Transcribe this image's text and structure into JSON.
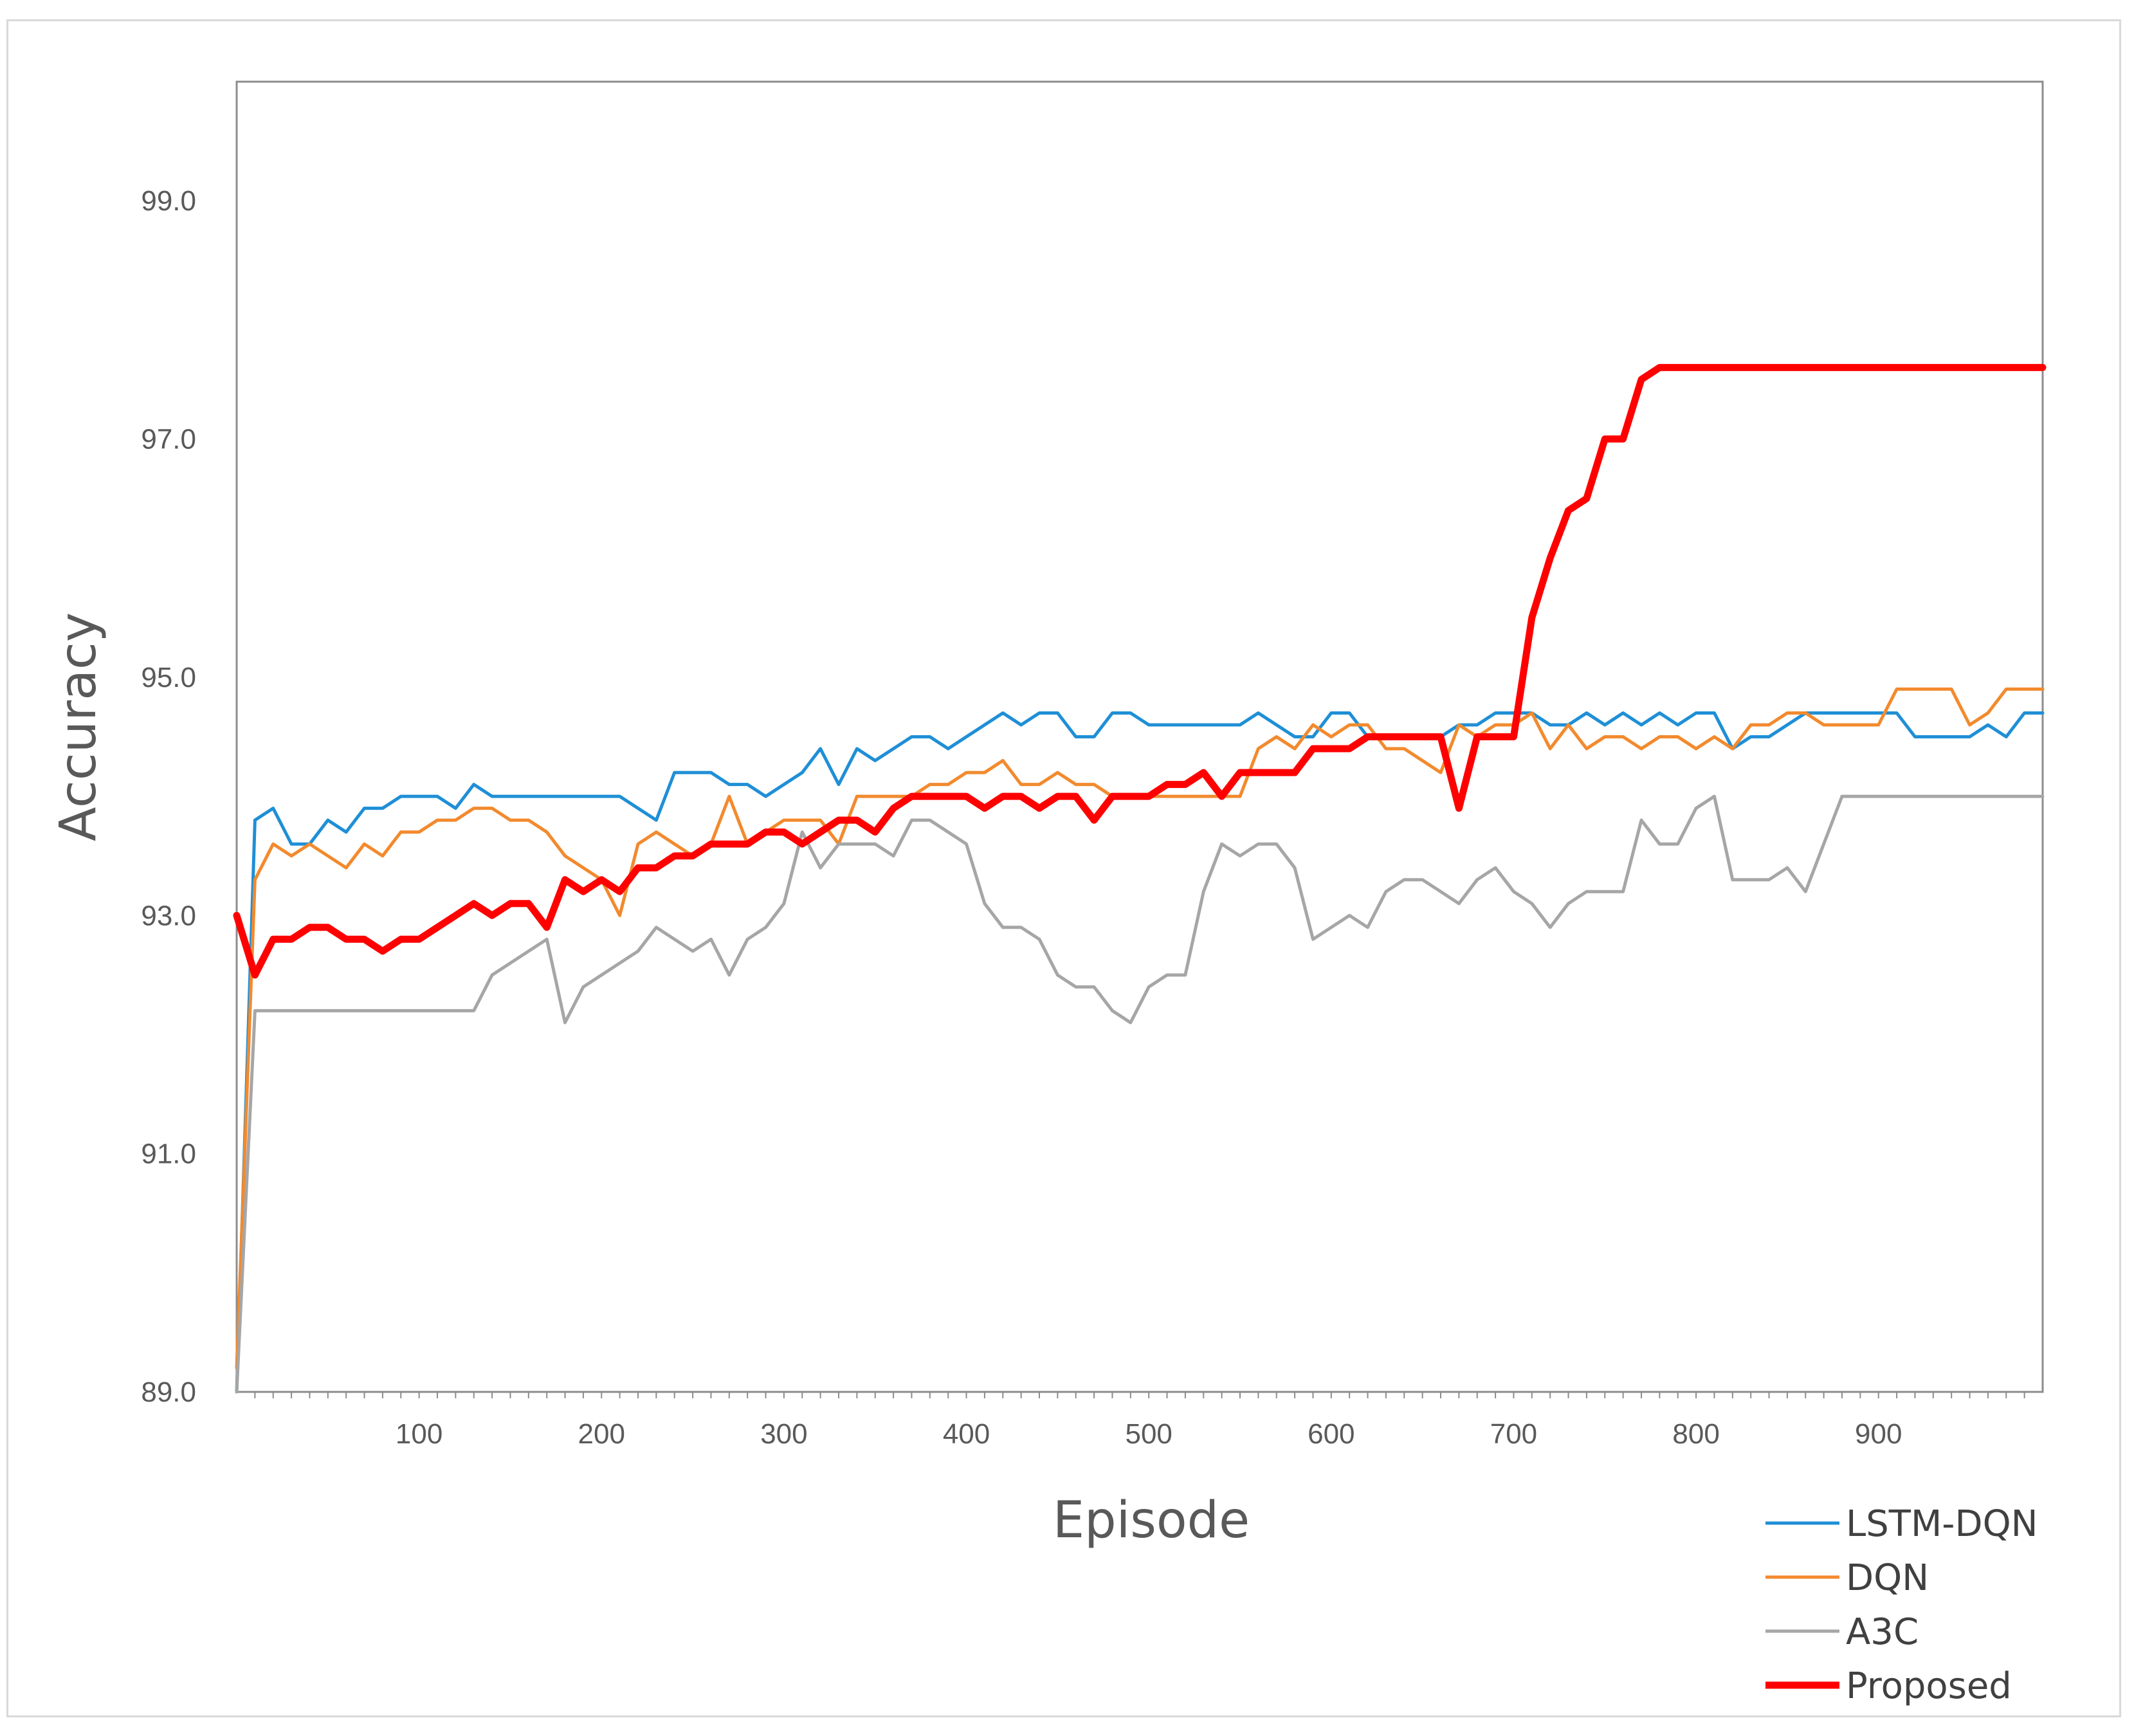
{
  "chart_data": {
    "type": "line",
    "title": "",
    "xlabel": "Episode",
    "ylabel": "Accuracy",
    "xlim": [
      0,
      990
    ],
    "ylim": [
      89.0,
      100.0
    ],
    "x_ticks": [
      100,
      200,
      300,
      400,
      500,
      600,
      700,
      800,
      900
    ],
    "x_tick_labels": [
      "100",
      "200",
      "300",
      "400",
      "500",
      "600",
      "700",
      "800",
      "900"
    ],
    "y_ticks": [
      89.0,
      91.0,
      93.0,
      95.0,
      97.0,
      99.0
    ],
    "y_tick_labels": [
      "89.0",
      "91.0",
      "93.0",
      "95.0",
      "97.0",
      "99.0"
    ],
    "grid": false,
    "legend_position": "bottom-right",
    "series": [
      {
        "name": "LSTM-DQN",
        "color": "#1f8fd6",
        "x": [
          0,
          10,
          20,
          30,
          40,
          50,
          60,
          70,
          80,
          90,
          100,
          110,
          120,
          130,
          140,
          150,
          160,
          170,
          180,
          190,
          200,
          210,
          220,
          230,
          240,
          250,
          260,
          270,
          280,
          290,
          300,
          310,
          320,
          330,
          340,
          350,
          360,
          370,
          380,
          390,
          400,
          410,
          420,
          430,
          440,
          450,
          460,
          470,
          480,
          490,
          500,
          510,
          520,
          530,
          540,
          550,
          560,
          570,
          580,
          590,
          600,
          610,
          620,
          630,
          640,
          650,
          660,
          670,
          680,
          690,
          700,
          710,
          720,
          730,
          740,
          750,
          760,
          770,
          780,
          790,
          800,
          810,
          820,
          830,
          840,
          850,
          860,
          870,
          880,
          890,
          900,
          910,
          920,
          930,
          940,
          950,
          960,
          970,
          980,
          990
        ],
        "values": [
          89.0,
          93.8,
          93.9,
          93.6,
          93.6,
          93.8,
          93.7,
          93.9,
          93.9,
          94.0,
          94.0,
          94.0,
          93.9,
          94.1,
          94.0,
          94.0,
          94.0,
          94.0,
          94.0,
          94.0,
          94.0,
          94.0,
          93.9,
          93.8,
          94.2,
          94.2,
          94.2,
          94.1,
          94.1,
          94.0,
          94.1,
          94.2,
          94.4,
          94.1,
          94.4,
          94.3,
          94.4,
          94.5,
          94.5,
          94.4,
          94.5,
          94.6,
          94.7,
          94.6,
          94.7,
          94.7,
          94.5,
          94.5,
          94.7,
          94.7,
          94.6,
          94.6,
          94.6,
          94.6,
          94.6,
          94.6,
          94.7,
          94.6,
          94.5,
          94.5,
          94.7,
          94.7,
          94.5,
          94.5,
          94.5,
          94.5,
          94.5,
          94.6,
          94.6,
          94.7,
          94.7,
          94.7,
          94.6,
          94.6,
          94.7,
          94.6,
          94.7,
          94.6,
          94.7,
          94.6,
          94.7,
          94.7,
          94.4,
          94.5,
          94.5,
          94.6,
          94.7,
          94.7,
          94.7,
          94.7,
          94.7,
          94.7,
          94.5,
          94.5,
          94.5,
          94.5,
          94.6,
          94.5,
          94.7,
          94.7
        ]
      },
      {
        "name": "DQN",
        "color": "#f28a2e",
        "x": [
          0,
          10,
          20,
          30,
          40,
          50,
          60,
          70,
          80,
          90,
          100,
          110,
          120,
          130,
          140,
          150,
          160,
          170,
          180,
          190,
          200,
          210,
          220,
          230,
          240,
          250,
          260,
          270,
          280,
          290,
          300,
          310,
          320,
          330,
          340,
          350,
          360,
          370,
          380,
          390,
          400,
          410,
          420,
          430,
          440,
          450,
          460,
          470,
          480,
          490,
          500,
          510,
          520,
          530,
          540,
          550,
          560,
          570,
          580,
          590,
          600,
          610,
          620,
          630,
          640,
          650,
          660,
          670,
          680,
          690,
          700,
          710,
          720,
          730,
          740,
          750,
          760,
          770,
          780,
          790,
          800,
          810,
          820,
          830,
          840,
          850,
          860,
          870,
          880,
          890,
          900,
          910,
          920,
          930,
          940,
          950,
          960,
          970,
          980,
          990
        ],
        "values": [
          89.2,
          93.3,
          93.6,
          93.5,
          93.6,
          93.5,
          93.4,
          93.6,
          93.5,
          93.7,
          93.7,
          93.8,
          93.8,
          93.9,
          93.9,
          93.8,
          93.8,
          93.7,
          93.5,
          93.4,
          93.3,
          93.0,
          93.6,
          93.7,
          93.6,
          93.5,
          93.6,
          94.0,
          93.6,
          93.7,
          93.8,
          93.8,
          93.8,
          93.6,
          94.0,
          94.0,
          94.0,
          94.0,
          94.1,
          94.1,
          94.2,
          94.2,
          94.3,
          94.1,
          94.1,
          94.2,
          94.1,
          94.1,
          94.0,
          94.0,
          94.0,
          94.0,
          94.0,
          94.0,
          94.0,
          94.0,
          94.4,
          94.5,
          94.4,
          94.6,
          94.5,
          94.6,
          94.6,
          94.4,
          94.4,
          94.3,
          94.2,
          94.6,
          94.5,
          94.6,
          94.6,
          94.7,
          94.4,
          94.6,
          94.4,
          94.5,
          94.5,
          94.4,
          94.5,
          94.5,
          94.4,
          94.5,
          94.4,
          94.6,
          94.6,
          94.7,
          94.7,
          94.6,
          94.6,
          94.6,
          94.6,
          94.9,
          94.9,
          94.9,
          94.9,
          94.6,
          94.7,
          94.9,
          94.9,
          94.9
        ]
      },
      {
        "name": "A3C",
        "color": "#a6a6a6",
        "x": [
          0,
          10,
          20,
          30,
          40,
          50,
          60,
          70,
          80,
          90,
          100,
          110,
          120,
          130,
          140,
          150,
          160,
          170,
          180,
          190,
          200,
          210,
          220,
          230,
          240,
          250,
          260,
          270,
          280,
          290,
          300,
          310,
          320,
          330,
          340,
          350,
          360,
          370,
          380,
          390,
          400,
          410,
          420,
          430,
          440,
          450,
          460,
          470,
          480,
          490,
          500,
          510,
          520,
          530,
          540,
          550,
          560,
          570,
          580,
          590,
          600,
          610,
          620,
          630,
          640,
          650,
          660,
          670,
          680,
          690,
          700,
          710,
          720,
          730,
          740,
          750,
          760,
          770,
          780,
          790,
          800,
          810,
          820,
          830,
          840,
          850,
          860,
          870,
          880,
          890,
          900,
          910,
          920,
          930,
          940,
          950,
          960,
          970,
          980,
          990
        ],
        "values": [
          89.0,
          92.2,
          92.2,
          92.2,
          92.2,
          92.2,
          92.2,
          92.2,
          92.2,
          92.2,
          92.2,
          92.2,
          92.2,
          92.2,
          92.5,
          92.6,
          92.7,
          92.8,
          92.1,
          92.4,
          92.5,
          92.6,
          92.7,
          92.9,
          92.8,
          92.7,
          92.8,
          92.5,
          92.8,
          92.9,
          93.1,
          93.7,
          93.4,
          93.6,
          93.6,
          93.6,
          93.5,
          93.8,
          93.8,
          93.7,
          93.6,
          93.1,
          92.9,
          92.9,
          92.8,
          92.5,
          92.4,
          92.4,
          92.2,
          92.1,
          92.4,
          92.5,
          92.5,
          93.2,
          93.6,
          93.5,
          93.6,
          93.6,
          93.4,
          92.8,
          92.9,
          93.0,
          92.9,
          93.2,
          93.3,
          93.3,
          93.2,
          93.1,
          93.3,
          93.4,
          93.2,
          93.1,
          92.9,
          93.1,
          93.2,
          93.2,
          93.2,
          93.8,
          93.6,
          93.6,
          93.9,
          94.0,
          93.3,
          93.3,
          93.3,
          93.4,
          93.2,
          93.6,
          94.0,
          94.0,
          94.0,
          94.0,
          94.0,
          94.0,
          94.0,
          94.0,
          94.0,
          94.0,
          94.0,
          94.0
        ]
      },
      {
        "name": "Proposed",
        "color": "#ff0000",
        "x": [
          0,
          10,
          20,
          30,
          40,
          50,
          60,
          70,
          80,
          90,
          100,
          110,
          120,
          130,
          140,
          150,
          160,
          170,
          180,
          190,
          200,
          210,
          220,
          230,
          240,
          250,
          260,
          270,
          280,
          290,
          300,
          310,
          320,
          330,
          340,
          350,
          360,
          370,
          380,
          390,
          400,
          410,
          420,
          430,
          440,
          450,
          460,
          470,
          480,
          490,
          500,
          510,
          520,
          530,
          540,
          550,
          560,
          570,
          580,
          590,
          600,
          610,
          620,
          630,
          640,
          650,
          660,
          670,
          680,
          690,
          700,
          710,
          720,
          730,
          740,
          750,
          760,
          770,
          780,
          790,
          800,
          810,
          820,
          830,
          840,
          850,
          860,
          870,
          880,
          890,
          900,
          910,
          920,
          930,
          940,
          950,
          960,
          970,
          980,
          990
        ],
        "values": [
          93.0,
          92.5,
          92.8,
          92.8,
          92.9,
          92.9,
          92.8,
          92.8,
          92.7,
          92.8,
          92.8,
          92.9,
          93.0,
          93.1,
          93.0,
          93.1,
          93.1,
          92.9,
          93.3,
          93.2,
          93.3,
          93.2,
          93.4,
          93.4,
          93.5,
          93.5,
          93.6,
          93.6,
          93.6,
          93.7,
          93.7,
          93.6,
          93.7,
          93.8,
          93.8,
          93.7,
          93.9,
          94.0,
          94.0,
          94.0,
          94.0,
          93.9,
          94.0,
          94.0,
          93.9,
          94.0,
          94.0,
          93.8,
          94.0,
          94.0,
          94.0,
          94.1,
          94.1,
          94.2,
          94.0,
          94.2,
          94.2,
          94.2,
          94.2,
          94.4,
          94.4,
          94.4,
          94.5,
          94.5,
          94.5,
          94.5,
          94.5,
          93.9,
          94.5,
          94.5,
          94.5,
          95.5,
          96.0,
          96.4,
          96.5,
          97.0,
          97.0,
          97.5,
          97.6,
          97.6,
          97.6,
          97.6,
          97.6,
          97.6,
          97.6,
          97.6,
          97.6,
          97.6,
          97.6,
          97.6,
          97.6,
          97.6,
          97.6,
          97.6,
          97.6,
          97.6,
          97.6,
          97.6,
          97.6,
          97.6
        ]
      }
    ]
  }
}
